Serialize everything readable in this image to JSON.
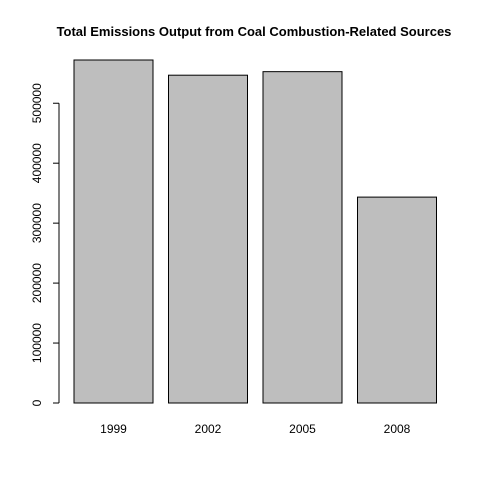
{
  "chart_data": {
    "type": "bar",
    "title": "Total Emissions Output from Coal Combustion-Related Sources",
    "xlabel": "",
    "ylabel": "",
    "categories": [
      "1999",
      "2002",
      "2005",
      "2008"
    ],
    "values": [
      572126,
      546789,
      552675,
      343432
    ],
    "ylim": [
      0,
      572126
    ],
    "yticks": [
      0,
      100000,
      200000,
      300000,
      400000,
      500000
    ],
    "ytick_labels": [
      "0",
      "100000",
      "200000",
      "300000",
      "400000",
      "500000"
    ],
    "grid": false,
    "legend": "none",
    "bar_color": "#bebebe",
    "bar_edge_color": "#000000"
  }
}
